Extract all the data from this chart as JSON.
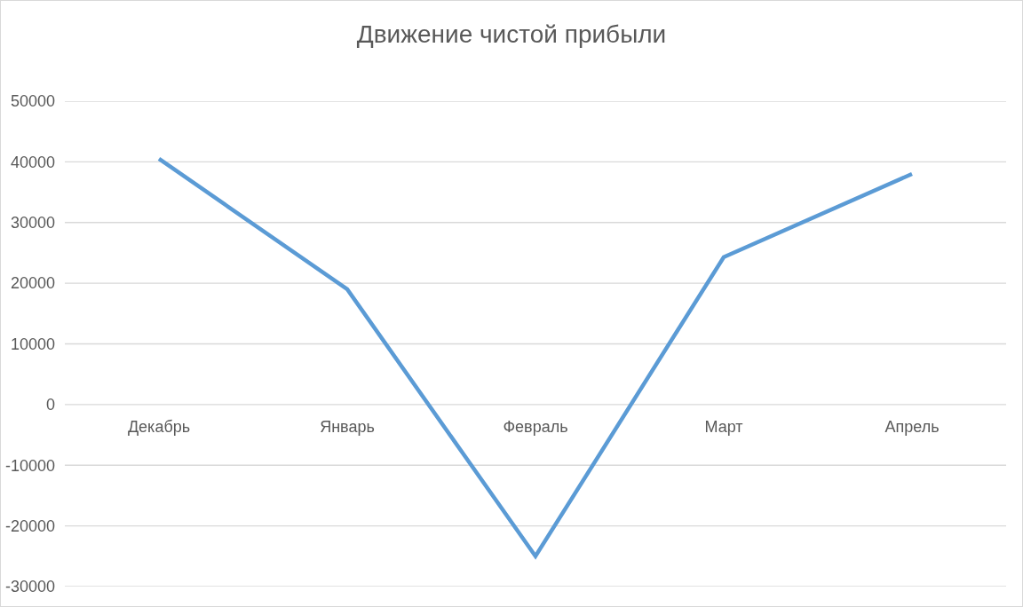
{
  "chart_data": {
    "type": "line",
    "title": "Движение чистой прибыли",
    "categories": [
      "Декабрь",
      "Январь",
      "Февраль",
      "Март",
      "Апрель"
    ],
    "series": [
      {
        "color": "#5b9bd5",
        "values": [
          40500,
          19000,
          -25000,
          24300,
          38000
        ]
      }
    ],
    "ylim": [
      -30000,
      50000
    ],
    "yticks": [
      -30000,
      -20000,
      -10000,
      0,
      10000,
      20000,
      30000,
      40000,
      50000
    ],
    "grid": "y",
    "marker": "none",
    "line_style": "solid"
  }
}
